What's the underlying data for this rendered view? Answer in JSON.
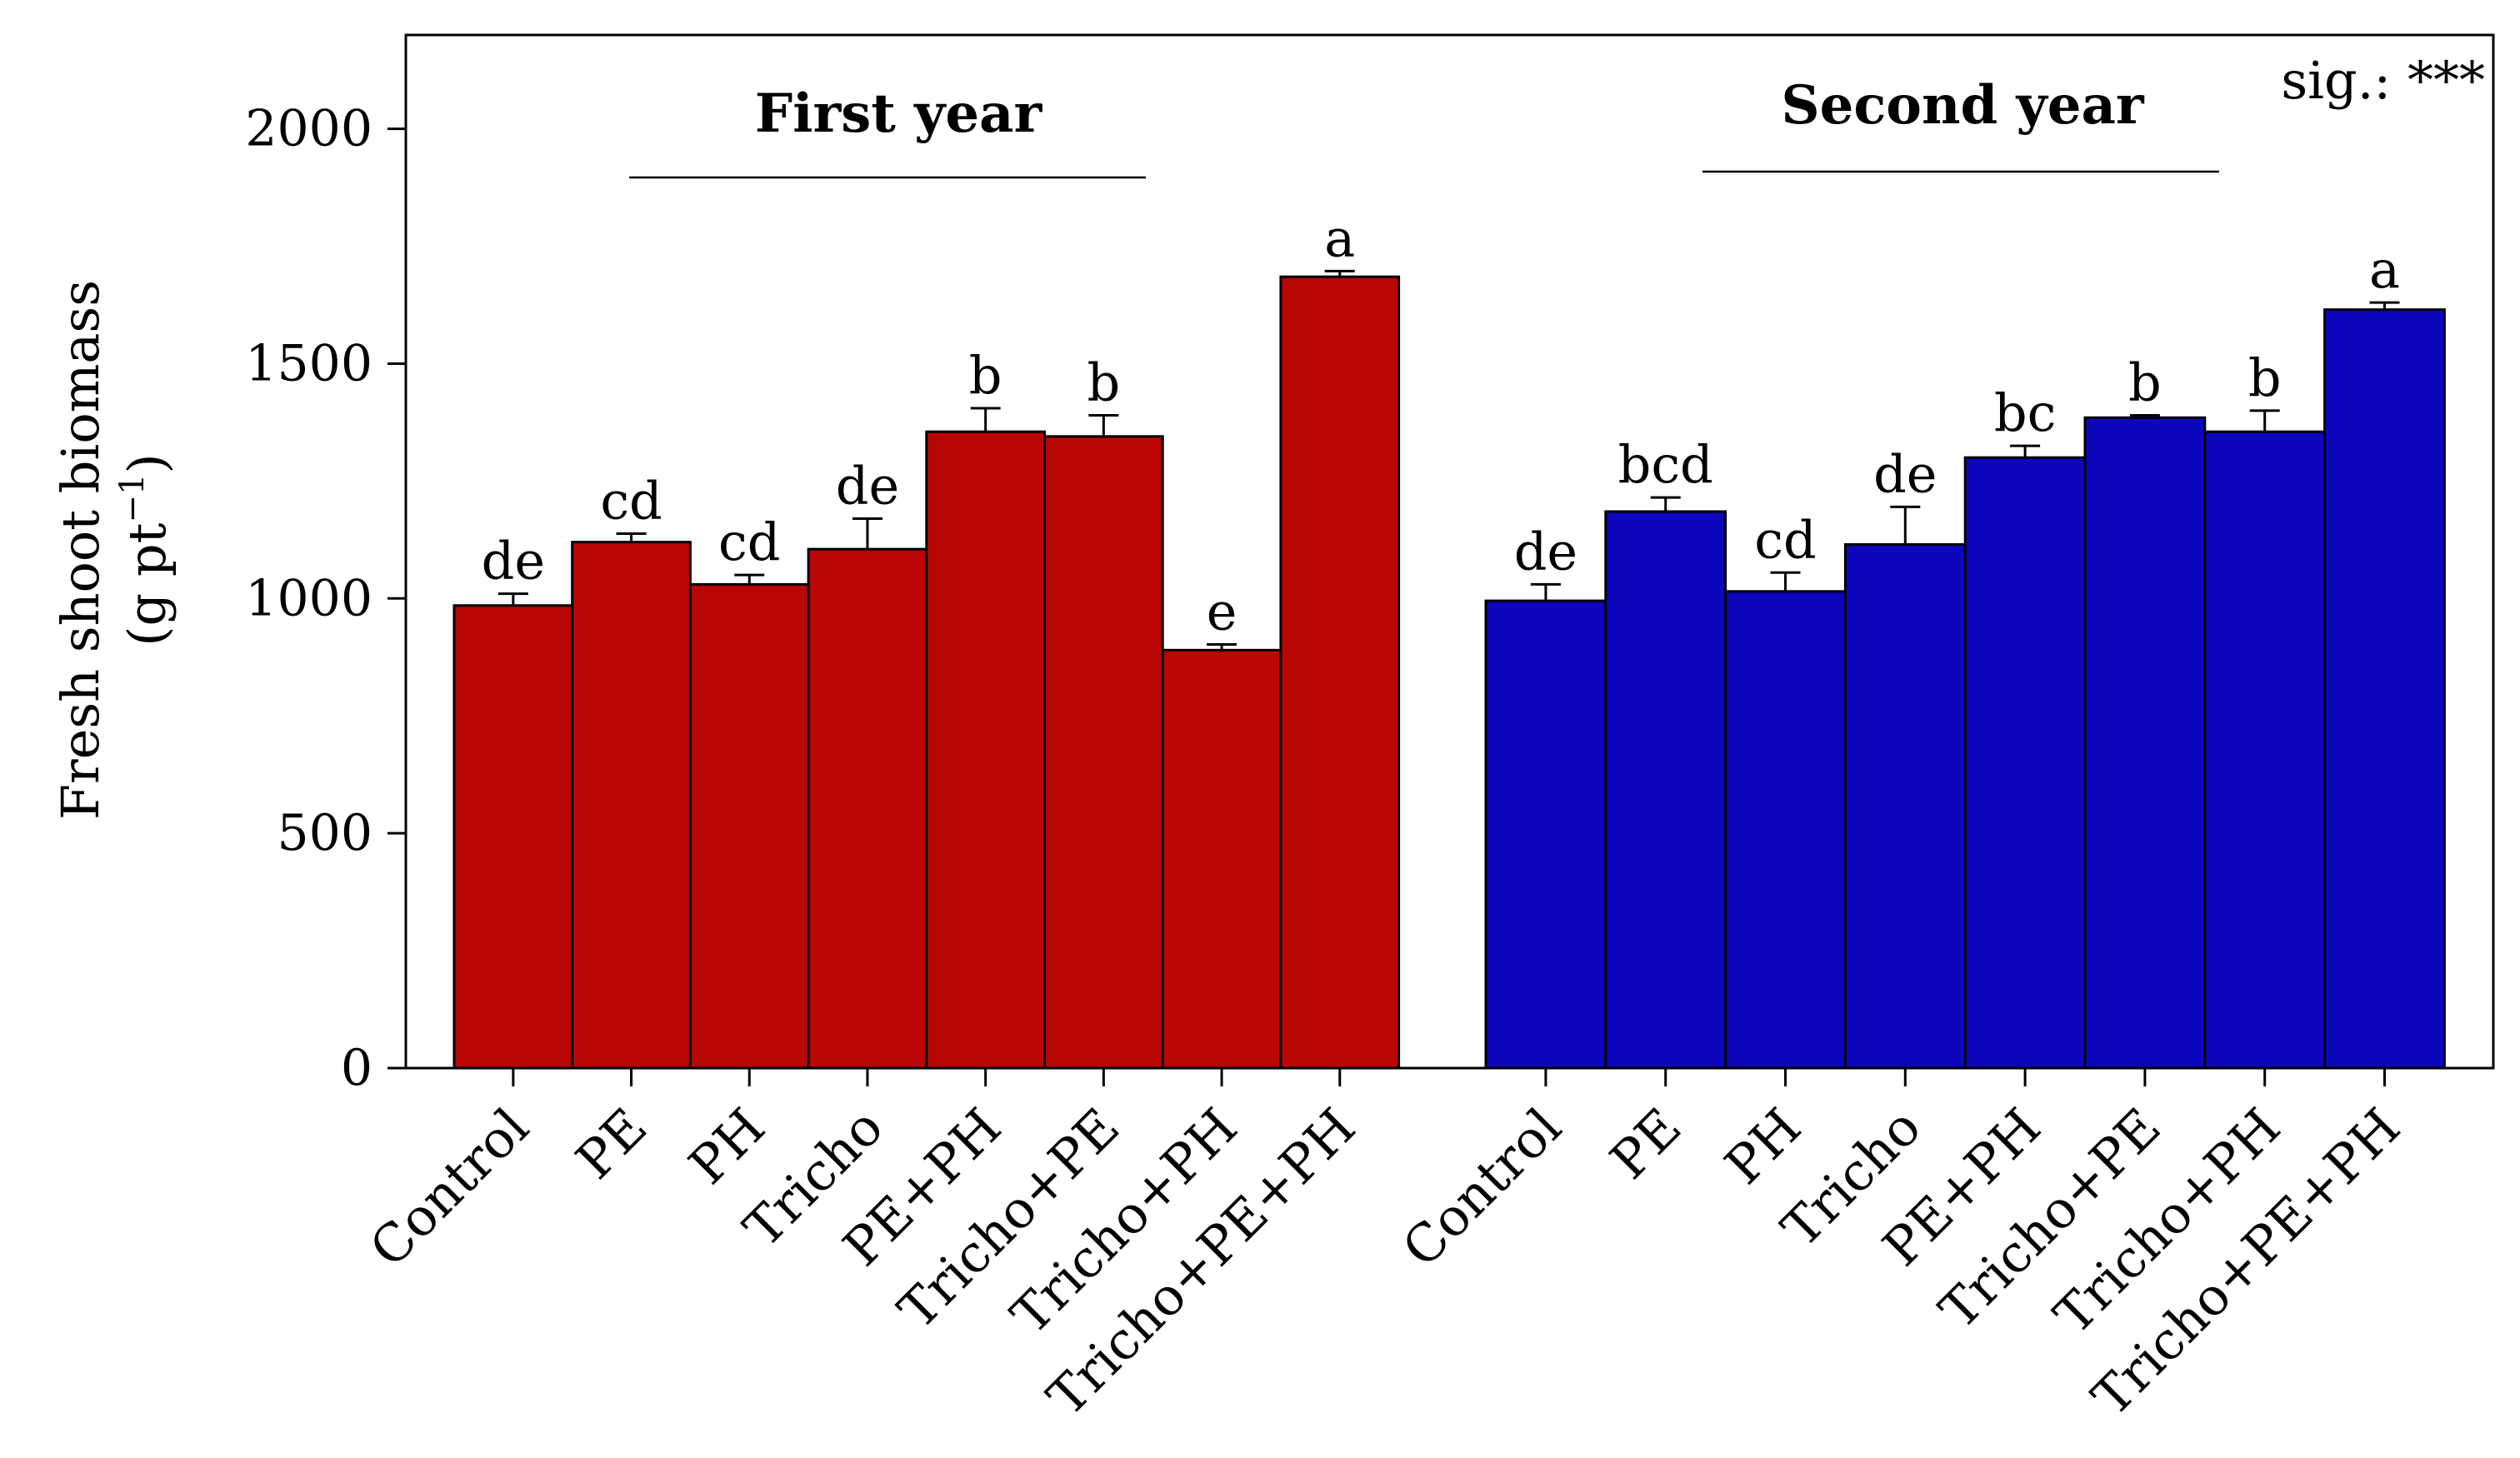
{
  "chart_data": {
    "type": "bar",
    "ylabel": "Fresh shoot biomass",
    "ylabel_units": {
      "pre": "(g pt",
      "sup": "−1",
      "post": ")"
    },
    "ylim": [
      0,
      2200
    ],
    "yticks": [
      0,
      500,
      1000,
      1500,
      2000
    ],
    "significance": "sig.: ***",
    "panels": [
      {
        "title": "First year",
        "color": "#B80605",
        "categories": [
          "Control",
          "PE",
          "PH",
          "Tricho",
          "PE+PH",
          "Tricho+PE",
          "Tricho+PH",
          "Tricho+PE+PH"
        ],
        "values": [
          985,
          1120,
          1030,
          1105,
          1355,
          1345,
          890,
          1685
        ],
        "errors": [
          25,
          18,
          20,
          65,
          50,
          45,
          12,
          12
        ],
        "letters": [
          "de",
          "cd",
          "cd",
          "de",
          "b",
          "b",
          "e",
          "a"
        ]
      },
      {
        "title": "Second year",
        "color": "#0C06BD",
        "categories": [
          "Control",
          "PE",
          "PH",
          "Tricho",
          "PE+PH",
          "Tricho+PE",
          "Tricho+PH",
          "Tricho+PE+PH"
        ],
        "values": [
          995,
          1185,
          1015,
          1115,
          1300,
          1385,
          1355,
          1615
        ],
        "errors": [
          35,
          30,
          40,
          80,
          25,
          5,
          45,
          15
        ],
        "letters": [
          "de",
          "bcd",
          "cd",
          "de",
          "bc",
          "b",
          "b",
          "a"
        ]
      }
    ]
  }
}
